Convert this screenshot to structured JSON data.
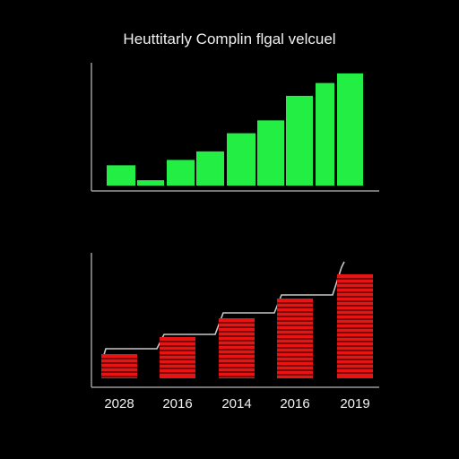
{
  "chart_data": [
    {
      "type": "bar",
      "title": "Heuttitarly Complin flgal velcuel",
      "bar_color": "#22ee44",
      "axis_color": "#9a9a9a",
      "values": [
        19,
        5,
        24,
        32,
        49,
        61,
        84,
        96,
        105
      ],
      "ylim": [
        0,
        120
      ],
      "grid": false
    },
    {
      "type": "bar",
      "bar_color": "#e81414",
      "stripe_color": "#000000",
      "line_color": "#c8c8c8",
      "axis_color": "#9a9a9a",
      "categories": [
        "2028",
        "2016",
        "2014",
        "2016",
        "2019"
      ],
      "values": [
        27,
        46,
        67,
        89,
        116
      ],
      "step_line": [
        33,
        49,
        73,
        93,
        124
      ],
      "ylim": [
        0,
        150
      ],
      "grid": false
    }
  ]
}
